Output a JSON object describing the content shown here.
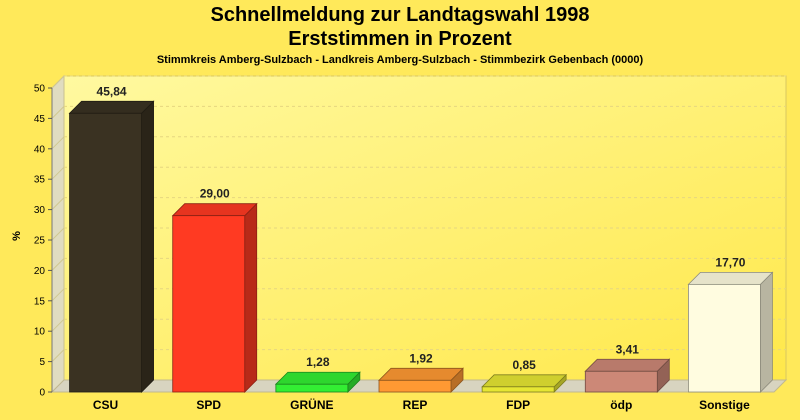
{
  "chart_data": {
    "type": "bar",
    "title": "Schnellmeldung zur Landtagswahl 1998",
    "subtitle": "Erststimmen in Prozent",
    "subsubtitle": "Stimmkreis Amberg-Sulzbach - Landkreis Amberg-Sulzbach - Stimmbezirk Gebenbach (0000)",
    "ylabel": "%",
    "xlabel": "",
    "ylim": [
      0,
      50
    ],
    "yticks": [
      "0",
      "5",
      "10",
      "15",
      "20",
      "25",
      "30",
      "35",
      "40",
      "45",
      "50"
    ],
    "grid": true,
    "categories": [
      "CSU",
      "SPD",
      "GRÜNE",
      "REP",
      "FDP",
      "ödp",
      "Sonstige"
    ],
    "values": [
      45.84,
      29.0,
      1.28,
      1.92,
      0.85,
      3.41,
      17.7
    ],
    "value_labels": [
      "45,84",
      "29,00",
      "1,28",
      "1,92",
      "0,85",
      "3,41",
      "17,70"
    ],
    "colors": [
      "#3a3222",
      "#ff3a22",
      "#33ee33",
      "#ff9933",
      "#e6e633",
      "#cc8877",
      "#fffce0"
    ]
  }
}
